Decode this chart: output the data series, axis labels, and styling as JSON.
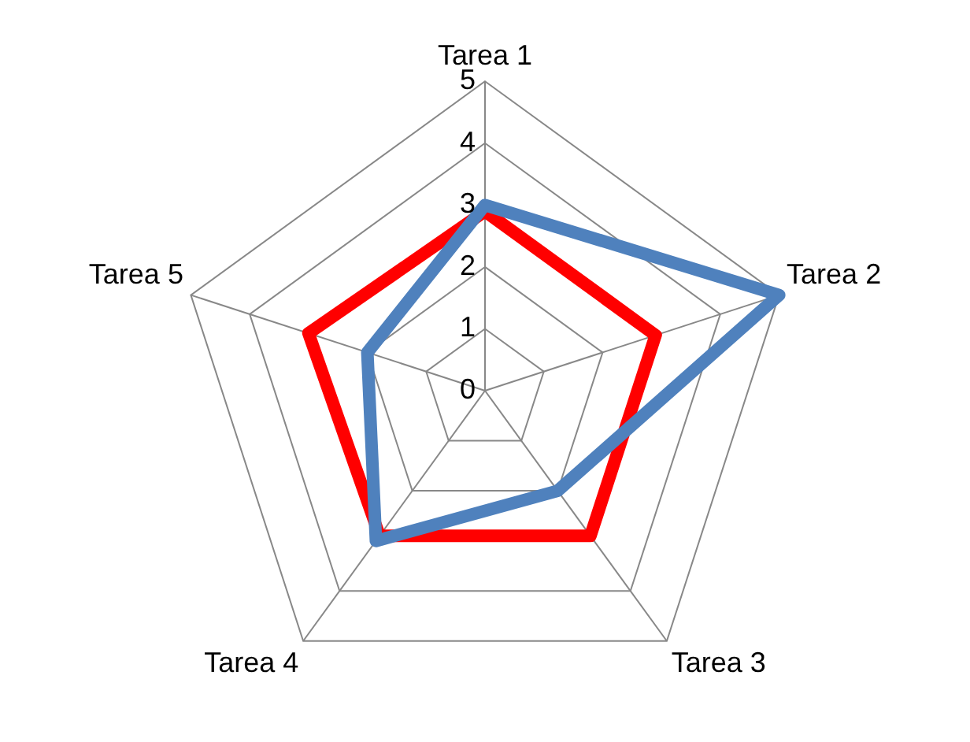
{
  "chart_data": {
    "type": "radar",
    "categories": [
      "Tarea 1",
      "Tarea 2",
      "Tarea 3",
      "Tarea 4",
      "Tarea 5"
    ],
    "series": [
      {
        "color": "#4f81bd",
        "values": [
          3,
          5,
          2,
          3,
          2
        ]
      },
      {
        "color": "#ff0000",
        "values": [
          2.9,
          2.9,
          2.9,
          2.9,
          3
        ]
      }
    ],
    "ylim": [
      0,
      5
    ],
    "yticks": [
      0,
      1,
      2,
      3,
      4,
      5
    ],
    "grid": true,
    "legend": false,
    "marker": "none"
  }
}
